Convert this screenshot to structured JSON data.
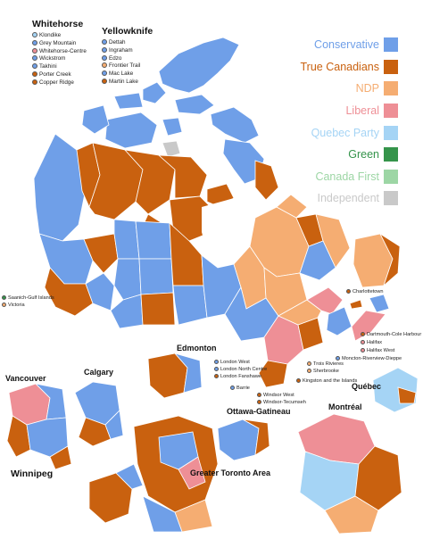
{
  "colors": {
    "conservative": "#6f9fe8",
    "true_canadians": "#c9610f",
    "ndp": "#f5ad72",
    "liberal": "#ee8f96",
    "quebec_party": "#a5d4f5",
    "green": "#35944b",
    "canada_first": "#9dd6a5",
    "independent": "#c9c9c9",
    "border": "#ffffff",
    "water": "#ffffff"
  },
  "legend": [
    {
      "label": "Conservative",
      "color": "#6f9fe8"
    },
    {
      "label": "True Canadians",
      "color": "#c9610f"
    },
    {
      "label": "NDP",
      "color": "#f5ad72"
    },
    {
      "label": "Liberal",
      "color": "#ee8f96"
    },
    {
      "label": "Quebec Party",
      "color": "#a5d4f5"
    },
    {
      "label": "Green",
      "color": "#35944b"
    },
    {
      "label": "Canada First",
      "color": "#9dd6a5"
    },
    {
      "label": "Independent",
      "color": "#c9c9c9"
    }
  ],
  "whitehorse": {
    "title": "Whitehorse",
    "ridings": [
      {
        "name": "Klondike",
        "color": "#a5d4f5"
      },
      {
        "name": "Grey Mountain",
        "color": "#6f9fe8"
      },
      {
        "name": "Whitehorse-Centre",
        "color": "#ee8f96"
      },
      {
        "name": "Wickstrom",
        "color": "#6f9fe8"
      },
      {
        "name": "Takhini",
        "color": "#6f9fe8"
      },
      {
        "name": "Porter Creek",
        "color": "#c9610f"
      },
      {
        "name": "Copper Ridge",
        "color": "#c9610f"
      }
    ]
  },
  "yellowknife": {
    "title": "Yellowknife",
    "ridings": [
      {
        "name": "Dettah",
        "color": "#6f9fe8"
      },
      {
        "name": "Ingraham",
        "color": "#6f9fe8"
      },
      {
        "name": "Edzo",
        "color": "#6f9fe8"
      },
      {
        "name": "Frontier Trail",
        "color": "#f5ad72"
      },
      {
        "name": "Mac Lake",
        "color": "#6f9fe8"
      },
      {
        "name": "Martin Lake",
        "color": "#c9610f"
      }
    ]
  },
  "insets": {
    "vancouver": "Vancouver",
    "calgary": "Calgary",
    "edmonton": "Edmonton",
    "winnipeg": "Winnipeg",
    "ottawa": "Ottawa-Gatineau",
    "toronto": "Greater Toronto Area",
    "montreal": "Montréal",
    "quebec": "Québec"
  },
  "callouts": {
    "saanich": {
      "label": "Saanich-Gulf Islands",
      "color": "#35944b"
    },
    "victoria": {
      "label": "Victoria",
      "color": "#f5ad72"
    },
    "charlottetown": {
      "label": "Charlottetown",
      "color": "#c9610f"
    },
    "dartmouth": {
      "label": "Dartmouth-Cole Harbour",
      "color": "#c9610f"
    },
    "halifax": {
      "label": "Halifax",
      "color": "#ee8f96"
    },
    "halifax_west": {
      "label": "Halifax West",
      "color": "#ee8f96"
    },
    "moncton": {
      "label": "Moncton-Riverview-Dieppe",
      "color": "#6f9fe8"
    },
    "london_west": {
      "label": "London West",
      "color": "#6f9fe8"
    },
    "london_north": {
      "label": "London North Centre",
      "color": "#6f9fe8"
    },
    "london_fanshawe": {
      "label": "London Fanshawe",
      "color": "#c9610f"
    },
    "barrie": {
      "label": "Barrie",
      "color": "#6f9fe8"
    },
    "windsor_west": {
      "label": "Windsor West",
      "color": "#c9610f"
    },
    "windsor_tecumseh": {
      "label": "Windsor-Tecumseh",
      "color": "#c9610f"
    },
    "trois_rivieres": {
      "label": "Trois Rivieres",
      "color": "#f5ad72"
    },
    "sherbrooke": {
      "label": "Sherbrooke",
      "color": "#f5ad72"
    },
    "kingston": {
      "label": "Kingston and the Islands",
      "color": "#c9610f"
    }
  }
}
